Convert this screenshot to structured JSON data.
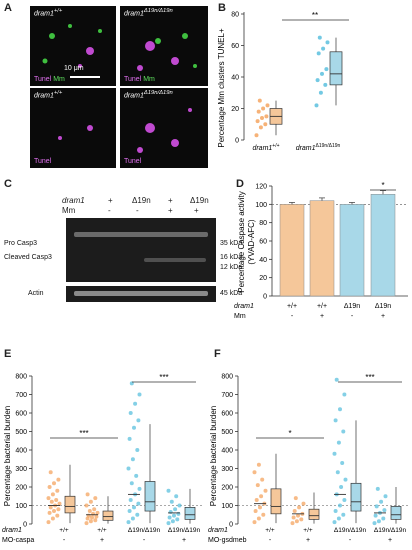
{
  "panels": {
    "A": {
      "letter": "A",
      "images": [
        {
          "genotype": "dram1",
          "sup": "+/+",
          "stain1": "Tunel",
          "stain2": "Mm"
        },
        {
          "genotype": "dram1",
          "sup": "Δ19n/Δ19n",
          "stain1": "Tunel",
          "stain2": "Mm"
        },
        {
          "genotype": "dram1",
          "sup": "+/+",
          "stain1": "Tunel",
          "stain2": ""
        },
        {
          "genotype": "dram1",
          "sup": "Δ19n/Δ19n",
          "stain1": "Tunel",
          "stain2": ""
        }
      ],
      "scale_bar": "10 μm"
    },
    "B": {
      "letter": "B",
      "significance": "**",
      "chart_data": {
        "type": "box",
        "ylabel": "Percentage Mm clusters TUNEL+",
        "ylim": [
          0,
          80
        ],
        "yticks": [
          0,
          20,
          40,
          60,
          80
        ],
        "categories": [
          "dram1+/+",
          "dram1Δ19n/Δ19n"
        ],
        "category_labels": [
          {
            "main": "dram1",
            "sup": "+/+"
          },
          {
            "main": "dram1",
            "sup": "Δ19n/Δ19n"
          }
        ],
        "colors": [
          "#f5c79a",
          "#a8d8e8"
        ],
        "dot_colors": [
          "#f4a460",
          "#5bc0de"
        ],
        "points": [
          [
            3,
            8,
            10,
            12,
            14,
            15,
            18,
            20,
            22,
            25
          ],
          [
            22,
            30,
            35,
            38,
            42,
            45,
            55,
            58,
            62,
            65
          ]
        ],
        "box": [
          {
            "q1": 10,
            "median": 15,
            "q3": 20,
            "min": 3,
            "max": 25
          },
          {
            "q1": 35,
            "median": 42,
            "q3": 56,
            "min": 22,
            "max": 65
          }
        ]
      }
    },
    "C": {
      "letter": "C",
      "header_rows": [
        {
          "label": "dram1",
          "values": [
            "+",
            "Δ19n",
            "+",
            "Δ19n"
          ]
        },
        {
          "label": "Mm",
          "values": [
            "-",
            "-",
            "+",
            "+"
          ]
        }
      ],
      "band_labels": [
        "Pro Casp3",
        "Cleaved Casp3",
        "Actin"
      ],
      "kda": [
        "35 kDa",
        "16 kDa",
        "12 kDa",
        "45 kDa"
      ]
    },
    "D": {
      "letter": "D",
      "significance": "*",
      "ylabel_line1": "Percentage Caspase activity",
      "ylabel_line2": "(YVAD-AFC)",
      "row_labels": {
        "dram1": "dram1",
        "mm": "Mm"
      },
      "x_dram1": [
        "+/+",
        "+/+",
        "Δ19n",
        "Δ19n"
      ],
      "x_mm": [
        "-",
        "+",
        "-",
        "+"
      ],
      "chart_data": {
        "type": "bar",
        "ylim": [
          0,
          120
        ],
        "yticks": [
          0,
          20,
          40,
          60,
          80,
          100,
          120
        ],
        "values": [
          100,
          104,
          100,
          111
        ],
        "errors": [
          2,
          3,
          2,
          4
        ],
        "colors": [
          "#f5c79a",
          "#f5c79a",
          "#a8d8e8",
          "#a8d8e8"
        ]
      }
    },
    "E": {
      "letter": "E",
      "sig_left": "***",
      "sig_right": "***",
      "ylabel": "Percentage bacterial burden",
      "row_labels": {
        "dram1": "dram1",
        "mo": "MO-caspa"
      },
      "x_dram1": [
        "+/+",
        "+/+",
        "Δ19n/Δ19n",
        "Δ19n/Δ19n"
      ],
      "x_mo": [
        "-",
        "+",
        "-",
        "+"
      ],
      "chart_data": {
        "type": "box",
        "ylim": [
          0,
          800
        ],
        "yticks": [
          0,
          100,
          200,
          300,
          400,
          500,
          600,
          700,
          800
        ],
        "colors": [
          "#f5c79a",
          "#f5c79a",
          "#a8d8e8",
          "#a8d8e8"
        ],
        "dot_colors": [
          "#f4a460",
          "#f4a460",
          "#5bc0de",
          "#5bc0de"
        ],
        "box": [
          {
            "q1": 60,
            "median": 95,
            "q3": 150,
            "min": 5,
            "max": 320,
            "mean": 100
          },
          {
            "q1": 20,
            "median": 40,
            "q3": 70,
            "min": 2,
            "max": 150,
            "mean": 50
          },
          {
            "q1": 70,
            "median": 120,
            "q3": 230,
            "min": 5,
            "max": 540,
            "mean": 160
          },
          {
            "q1": 25,
            "median": 50,
            "q3": 90,
            "min": 2,
            "max": 190,
            "mean": 60
          }
        ],
        "points": [
          [
            10,
            30,
            45,
            60,
            70,
            80,
            90,
            100,
            110,
            120,
            130,
            140,
            160,
            180,
            200,
            220,
            240,
            280
          ],
          [
            5,
            15,
            20,
            30,
            35,
            40,
            45,
            55,
            60,
            70,
            80,
            100,
            120,
            140,
            160
          ],
          [
            10,
            30,
            50,
            70,
            90,
            110,
            130,
            160,
            190,
            220,
            260,
            300,
            350,
            400,
            460,
            520,
            560,
            600,
            650,
            700,
            760
          ],
          [
            5,
            15,
            25,
            35,
            45,
            55,
            65,
            80,
            100,
            120,
            150,
            180
          ]
        ]
      }
    },
    "F": {
      "letter": "F",
      "sig_left": "*",
      "sig_right": "***",
      "ylabel": "Percentage bacterial burden",
      "row_labels": {
        "dram1": "dram1",
        "mo": "MO-gsdmeb"
      },
      "x_dram1": [
        "+/+",
        "+/+",
        "Δ19n/Δ19n",
        "Δ19n/Δ19n"
      ],
      "x_mo": [
        "-",
        "+",
        "-",
        "+"
      ],
      "chart_data": {
        "type": "box",
        "ylim": [
          0,
          800
        ],
        "yticks": [
          0,
          100,
          200,
          300,
          400,
          500,
          600,
          700,
          800
        ],
        "colors": [
          "#f5c79a",
          "#f5c79a",
          "#a8d8e8",
          "#a8d8e8"
        ],
        "dot_colors": [
          "#f4a460",
          "#f4a460",
          "#5bc0de",
          "#5bc0de"
        ],
        "box": [
          {
            "q1": 55,
            "median": 95,
            "q3": 190,
            "min": 5,
            "max": 380,
            "mean": 110
          },
          {
            "q1": 25,
            "median": 45,
            "q3": 80,
            "min": 2,
            "max": 170,
            "mean": 55
          },
          {
            "q1": 70,
            "median": 120,
            "q3": 220,
            "min": 5,
            "max": 560,
            "mean": 160
          },
          {
            "q1": 25,
            "median": 50,
            "q3": 95,
            "min": 2,
            "max": 200,
            "mean": 60
          }
        ],
        "points": [
          [
            10,
            30,
            50,
            70,
            90,
            110,
            130,
            150,
            180,
            210,
            240,
            280,
            320
          ],
          [
            5,
            15,
            25,
            35,
            45,
            55,
            70,
            90,
            110,
            140
          ],
          [
            10,
            30,
            50,
            70,
            100,
            130,
            160,
            200,
            240,
            280,
            330,
            380,
            440,
            500,
            560,
            620,
            700,
            780
          ],
          [
            5,
            15,
            30,
            45,
            60,
            75,
            95,
            120,
            150,
            190
          ]
        ]
      }
    }
  }
}
